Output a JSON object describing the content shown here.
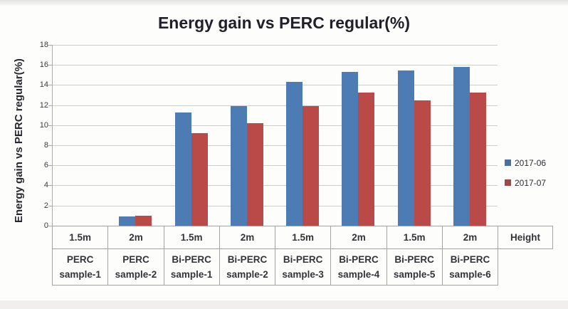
{
  "chart_data": {
    "type": "bar",
    "title": "Energy gain vs PERC regular(%)",
    "ylabel": "Energy gain vs PERC regular(%)",
    "ylim": [
      0,
      18
    ],
    "ytick_step": 2,
    "yticks": [
      0,
      2,
      4,
      6,
      8,
      10,
      12,
      14,
      16,
      18
    ],
    "grid": true,
    "legend_position": "right",
    "x_axis_table": {
      "height_row": [
        "1.5m",
        "2m",
        "1.5m",
        "2m",
        "1.5m",
        "2m",
        "1.5m",
        "2m"
      ],
      "height_row_corner_label": "Height",
      "sample_row": [
        [
          "PERC",
          "sample-1"
        ],
        [
          "PERC",
          "sample-2"
        ],
        [
          "Bi-PERC",
          "sample-1"
        ],
        [
          "Bi-PERC",
          "sample-2"
        ],
        [
          "Bi-PERC",
          "sample-3"
        ],
        [
          "Bi-PERC",
          "sample-4"
        ],
        [
          "Bi-PERC",
          "sample-5"
        ],
        [
          "Bi-PERC",
          "sample-6"
        ]
      ]
    },
    "series": [
      {
        "name": "2017-06",
        "color": "#4d7bb4",
        "legend_color": "#45709f",
        "values": [
          0,
          0.9,
          11.3,
          11.9,
          14.3,
          15.3,
          15.5,
          15.8
        ]
      },
      {
        "name": "2017-07",
        "color": "#ba4a47",
        "legend_color": "#a04845",
        "values": [
          0,
          1.0,
          9.2,
          10.2,
          11.9,
          13.3,
          12.5,
          13.3
        ]
      }
    ]
  },
  "colors": {
    "background": "#fdfdfc",
    "gridline": "#cdcdcc",
    "axis": "#8f8f8e",
    "table_border": "#a3a3a2",
    "title_text": "#20202a",
    "tick_text": "#3a3a40",
    "top_strip": "#e2e2e1",
    "bottom_strip": "#f0efee"
  }
}
